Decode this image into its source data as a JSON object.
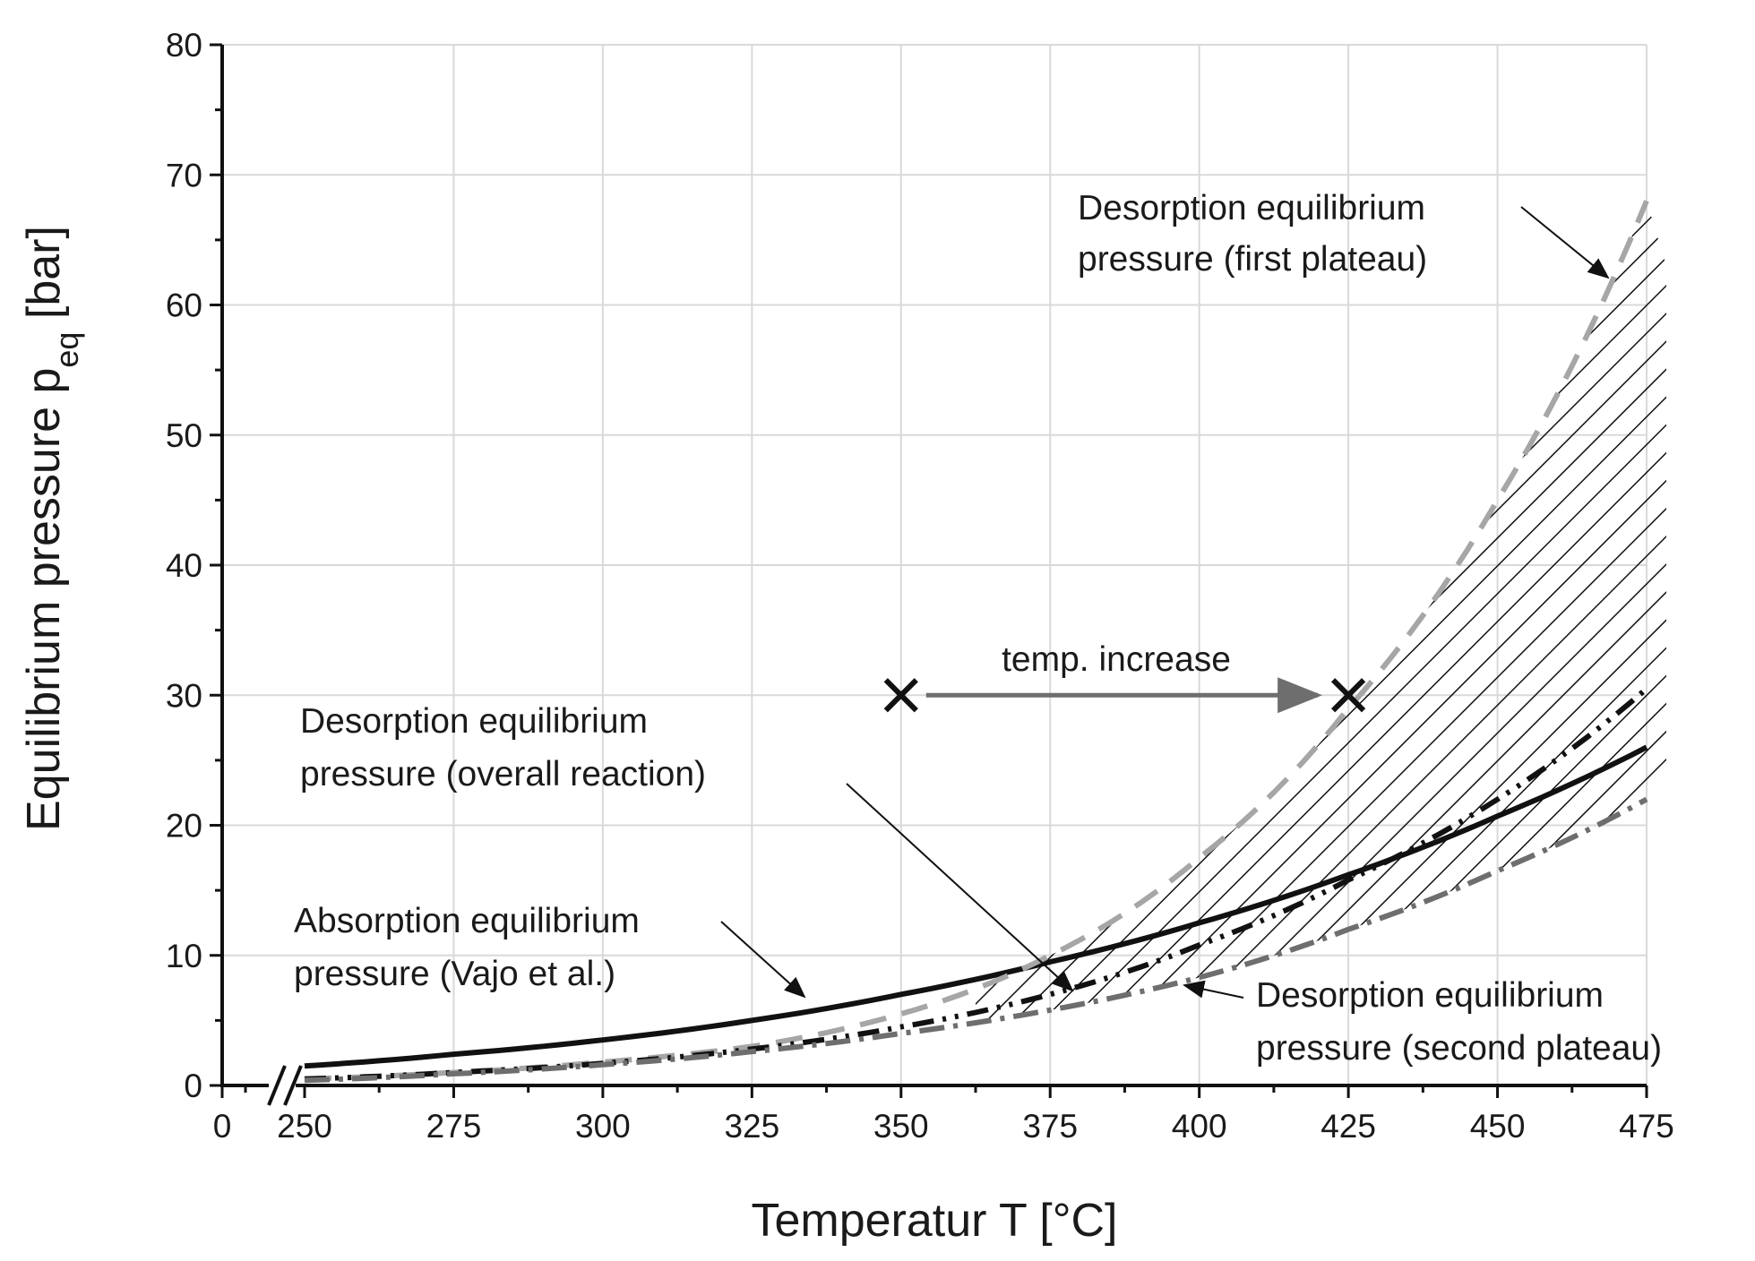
{
  "chart_data": {
    "type": "line",
    "xlabel": "Temperatur T [°C]",
    "ylabel_main": "Equilibrium pressure p",
    "ylabel_sub": "eq",
    "ylabel_unit": " [bar]",
    "xlim": [
      250,
      475
    ],
    "ylim": [
      0,
      80
    ],
    "x_ticks": [
      250,
      275,
      300,
      325,
      350,
      375,
      400,
      425,
      450,
      475
    ],
    "x_tick_labels": [
      "250",
      "275",
      "300",
      "325",
      "350",
      "375",
      "400",
      "425",
      "450",
      "475"
    ],
    "x_zero_label": "0",
    "y_ticks": [
      0,
      10,
      20,
      30,
      40,
      50,
      60,
      70,
      80
    ],
    "y_tick_labels": [
      "0",
      "10",
      "20",
      "30",
      "40",
      "50",
      "60",
      "70",
      "80"
    ],
    "grid": true,
    "axis_break": true,
    "series": [
      {
        "name": "Absorption equilibrium pressure (Vajo et al.)",
        "style": "solid",
        "color": "#111111",
        "x": [
          250,
          275,
          300,
          325,
          350,
          375,
          400,
          425,
          450,
          475
        ],
        "y": [
          1.5,
          2.4,
          3.5,
          5.0,
          7.0,
          9.5,
          12.5,
          16.2,
          20.7,
          26.0
        ]
      },
      {
        "name": "Desorption equilibrium pressure (first plateau)",
        "style": "dashed",
        "color": "#a6a6a6",
        "x": [
          250,
          275,
          300,
          325,
          350,
          375,
          400,
          425,
          450,
          475
        ],
        "y": [
          0.5,
          1.0,
          1.8,
          3.0,
          5.5,
          10.0,
          17.5,
          29.0,
          45.0,
          68.0
        ]
      },
      {
        "name": "Desorption equilibrium pressure (overall reaction)",
        "style": "dash-dot-dot",
        "color": "#111111",
        "x": [
          250,
          275,
          300,
          325,
          350,
          375,
          400,
          425,
          450,
          475
        ],
        "y": [
          0.5,
          1.0,
          1.7,
          2.8,
          4.5,
          7.0,
          10.8,
          15.8,
          22.0,
          30.5
        ]
      },
      {
        "name": "Desorption equilibrium pressure (second plateau)",
        "style": "dash-dot",
        "color": "#6e6e6e",
        "x": [
          250,
          275,
          300,
          325,
          350,
          375,
          400,
          425,
          450,
          475
        ],
        "y": [
          0.4,
          0.9,
          1.6,
          2.6,
          4.0,
          5.8,
          8.3,
          12.0,
          16.5,
          22.0
        ]
      }
    ],
    "shaded_region": {
      "between": [
        "Desorption equilibrium pressure (first plateau)",
        "Desorption equilibrium pressure (second plateau)"
      ],
      "pattern": "hatched"
    },
    "markers": [
      {
        "name": "start",
        "x": 350,
        "y": 30,
        "symbol": "x"
      },
      {
        "name": "end",
        "x": 425,
        "y": 30,
        "symbol": "x"
      }
    ],
    "annotations": {
      "temp_increase": "temp. increase",
      "first_plateau_line1": "Desorption equilibrium",
      "first_plateau_line2": "pressure (first plateau)",
      "overall_line1": "Desorption equilibrium",
      "overall_line2": "pressure (overall reaction)",
      "absorption_line1": "Absorption equilibrium",
      "absorption_line2": "pressure (Vajo et al.)",
      "second_plateau_line1": "Desorption equilibrium",
      "second_plateau_line2": "pressure (second plateau)"
    }
  }
}
